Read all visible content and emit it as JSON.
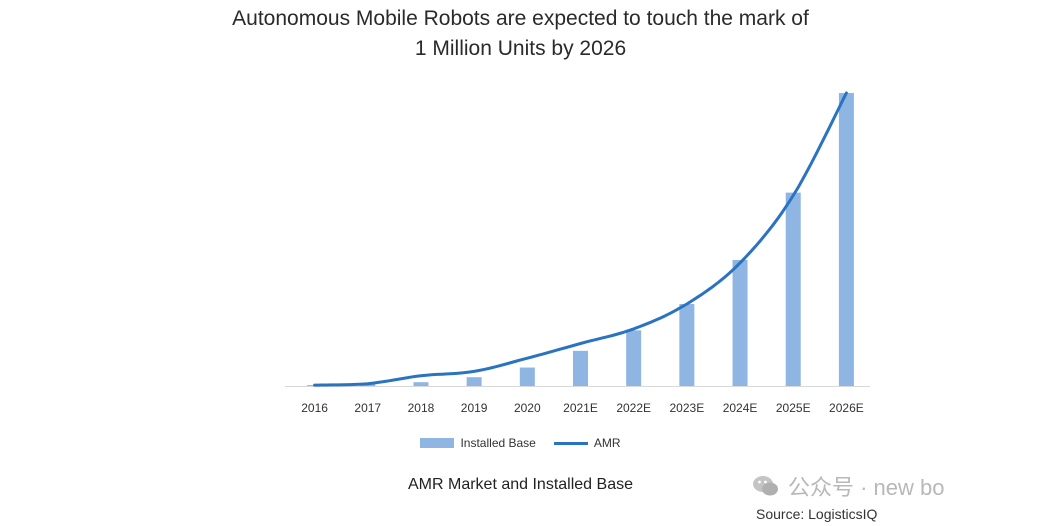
{
  "title_line1": "Autonomous Mobile Robots are expected to touch the mark of",
  "title_line2": "1 Million Units by 2026",
  "caption": "AMR Market and Installed Base",
  "source": "Source: LogisticsIQ",
  "watermark_text": "公众号 · new bo",
  "colors": {
    "bar": "#8fb5e2",
    "line": "#2a73c0",
    "axis": "#d8d8d8"
  },
  "chart_data": {
    "type": "bar",
    "title": "Autonomous Mobile Robots are expected to touch the mark of 1 Million Units by 2026",
    "xlabel": "",
    "ylabel": "",
    "categories": [
      "2016",
      "2017",
      "2018",
      "2019",
      "2020",
      "2021E",
      "2022E",
      "2023E",
      "2024E",
      "2025E",
      "2026E"
    ],
    "ylim": [
      0,
      100
    ],
    "grid": false,
    "legend_position": "bottom",
    "series": [
      {
        "name": "Installed Base",
        "type": "bar",
        "values": [
          0.3,
          0.6,
          1.3,
          3,
          6.3,
          12,
          19,
          28,
          43,
          66,
          100
        ]
      },
      {
        "name": "AMR",
        "type": "line",
        "values": [
          0.3,
          0.8,
          3.5,
          5,
          9.5,
          14.5,
          19.5,
          28,
          42,
          65,
          100
        ]
      }
    ]
  }
}
